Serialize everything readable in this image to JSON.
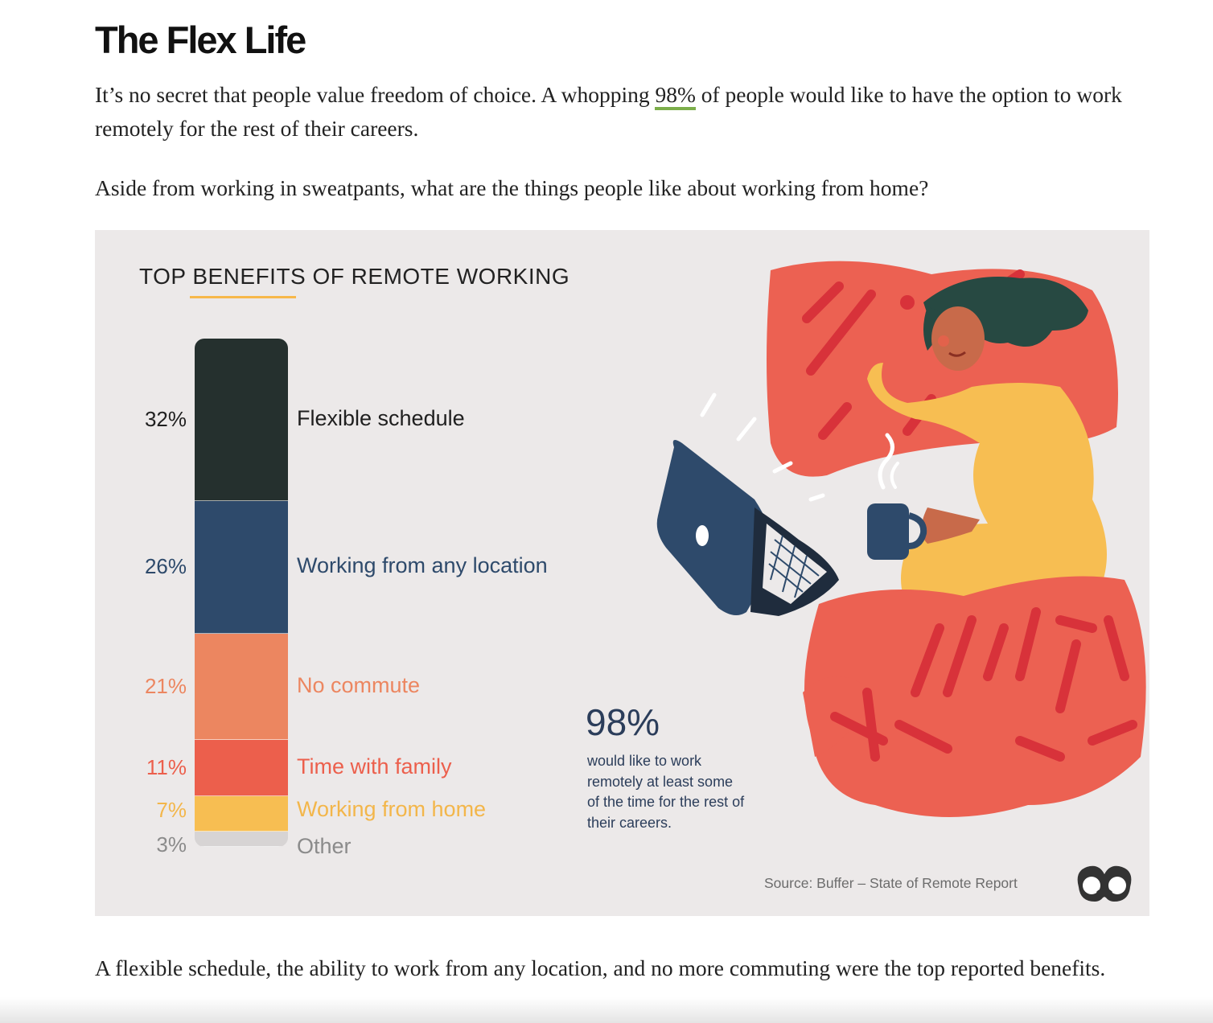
{
  "article": {
    "title": "The Flex Life",
    "p1_before": "It’s no secret that people value freedom of choice. A whopping ",
    "p1_link": "98%",
    "p1_after": " of people would like to have the option to work remotely for the rest of their careers.",
    "p2": "Aside from working in sweatpants, what are the things people like about working from home?",
    "p3": "A flexible schedule, the ability to work from any location, and no more commuting were the top reported benefits."
  },
  "infographic": {
    "title": "TOP BENEFITS OF REMOTE WORKING",
    "big_stat": "98%",
    "stat_caption": "would like to work remotely at least some of the time for the rest of their careers.",
    "source": "Source: Buffer – State of Remote Report",
    "logo_icon": "binoculars-logo-icon",
    "illustration_icon": "woman-lying-in-bed-with-laptop-icon"
  },
  "chart_data": {
    "type": "bar",
    "title": "TOP BENEFITS OF REMOTE WORKING",
    "stacked": true,
    "categories": [
      "Flexible schedule",
      "Working from any location",
      "No commute",
      "Time with family",
      "Working from home",
      "Other"
    ],
    "values": [
      32,
      26,
      21,
      11,
      7,
      3
    ],
    "value_labels": [
      "32%",
      "26%",
      "21%",
      "11%",
      "7%",
      "3%"
    ],
    "colors": [
      "#25302e",
      "#2e4a6b",
      "#ec8660",
      "#ec5f4c",
      "#f7be52",
      "#d7d4d4"
    ],
    "label_colors": [
      "#1f1f1f",
      "#2e4a6b",
      "#ec8660",
      "#ec5f4c",
      "#f3b64a",
      "#8b8b8b"
    ]
  }
}
